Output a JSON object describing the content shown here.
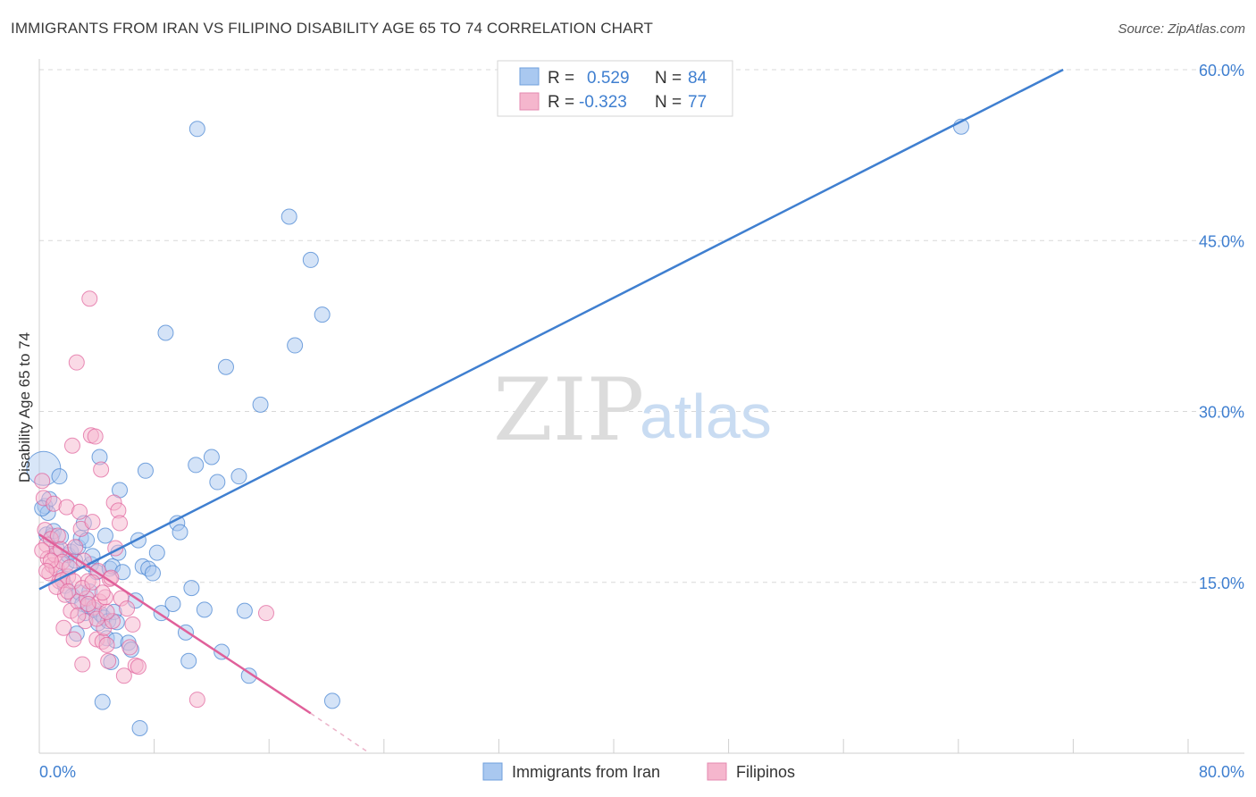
{
  "title": "IMMIGRANTS FROM IRAN VS FILIPINO DISABILITY AGE 65 TO 74 CORRELATION CHART",
  "source": "Source: ZipAtlas.com",
  "watermark": {
    "zip": "ZIP",
    "atlas": "atlas"
  },
  "colors": {
    "blue": "#3f7fd0",
    "blue_fill": "#a9c8f0",
    "pink": "#e0609a",
    "pink_fill": "#f5b6cd",
    "grid": "#d8d8d8"
  },
  "chart_data": {
    "type": "scatter",
    "title": "IMMIGRANTS FROM IRAN VS FILIPINO DISABILITY AGE 65 TO 74 CORRELATION CHART",
    "xlabel": "",
    "ylabel": "Disability Age 65 to 74",
    "xlim": [
      0,
      80
    ],
    "ylim": [
      0,
      60
    ],
    "x_tick_labels": [
      "0.0%",
      "80.0%"
    ],
    "y_ticks": [
      15,
      30,
      45,
      60
    ],
    "y_tick_labels": [
      "15.0%",
      "30.0%",
      "45.0%",
      "60.0%"
    ],
    "legend": [
      {
        "name": "Immigrants from Iran",
        "r_label": "R =",
        "r": "0.529",
        "n_label": "N =",
        "n": "84"
      },
      {
        "name": "Filipinos",
        "r_label": "R =",
        "r": "-0.323",
        "n_label": "N =",
        "n": "77"
      }
    ],
    "series": [
      {
        "name": "Immigrants from Iran",
        "trend": {
          "x": [
            0,
            71.3
          ],
          "y": [
            14.4,
            60.0
          ]
        },
        "points": [
          [
            0.3,
            25.0
          ],
          [
            0.4,
            21.7
          ],
          [
            0.5,
            19.2
          ],
          [
            0.6,
            21.1
          ],
          [
            0.7,
            22.3
          ],
          [
            0.9,
            19.1
          ],
          [
            1.0,
            19.5
          ],
          [
            1.2,
            18.0
          ],
          [
            1.4,
            24.3
          ],
          [
            1.5,
            19.0
          ],
          [
            1.6,
            15.4
          ],
          [
            1.8,
            14.7
          ],
          [
            1.9,
            16.6
          ],
          [
            2.0,
            17.4
          ],
          [
            2.2,
            17.7
          ],
          [
            2.3,
            13.8
          ],
          [
            2.5,
            16.9
          ],
          [
            2.6,
            10.5
          ],
          [
            2.7,
            18.1
          ],
          [
            2.8,
            14.1
          ],
          [
            2.9,
            18.9
          ],
          [
            3.0,
            13.1
          ],
          [
            3.1,
            20.2
          ],
          [
            3.2,
            12.3
          ],
          [
            3.3,
            18.7
          ],
          [
            3.4,
            12.9
          ],
          [
            3.5,
            14.2
          ],
          [
            3.6,
            16.6
          ],
          [
            3.7,
            17.3
          ],
          [
            3.8,
            12.6
          ],
          [
            4.0,
            15.9
          ],
          [
            4.1,
            11.4
          ],
          [
            4.2,
            26.0
          ],
          [
            4.3,
            12.2
          ],
          [
            4.4,
            4.5
          ],
          [
            4.5,
            11.9
          ],
          [
            4.6,
            19.1
          ],
          [
            4.7,
            10.1
          ],
          [
            4.8,
            11.6
          ],
          [
            4.9,
            16.2
          ],
          [
            5.0,
            8.0
          ],
          [
            5.1,
            16.4
          ],
          [
            5.2,
            12.4
          ],
          [
            5.3,
            9.9
          ],
          [
            5.4,
            11.5
          ],
          [
            5.5,
            17.6
          ],
          [
            5.6,
            23.1
          ],
          [
            5.8,
            15.9
          ],
          [
            6.2,
            9.7
          ],
          [
            6.4,
            9.1
          ],
          [
            6.7,
            13.4
          ],
          [
            6.9,
            18.7
          ],
          [
            7.0,
            2.2
          ],
          [
            7.2,
            16.4
          ],
          [
            7.4,
            24.8
          ],
          [
            7.6,
            16.2
          ],
          [
            7.9,
            15.8
          ],
          [
            8.2,
            17.6
          ],
          [
            8.5,
            12.3
          ],
          [
            8.8,
            36.9
          ],
          [
            9.3,
            13.1
          ],
          [
            9.6,
            20.2
          ],
          [
            9.8,
            19.4
          ],
          [
            10.2,
            10.6
          ],
          [
            10.4,
            8.1
          ],
          [
            10.6,
            14.5
          ],
          [
            10.9,
            25.3
          ],
          [
            11.0,
            54.8
          ],
          [
            11.5,
            12.6
          ],
          [
            12.0,
            26.0
          ],
          [
            12.4,
            23.8
          ],
          [
            12.7,
            8.9
          ],
          [
            13.0,
            33.9
          ],
          [
            13.9,
            24.3
          ],
          [
            14.3,
            12.5
          ],
          [
            14.6,
            6.8
          ],
          [
            15.4,
            30.6
          ],
          [
            17.4,
            47.1
          ],
          [
            17.8,
            35.8
          ],
          [
            18.9,
            43.3
          ],
          [
            19.7,
            38.5
          ],
          [
            20.4,
            4.6
          ],
          [
            64.2,
            55.0
          ],
          [
            0.2,
            21.5
          ]
        ]
      },
      {
        "name": "Filipinos",
        "trend": {
          "x": [
            0,
            18.9
          ],
          "y": [
            19.2,
            3.5
          ]
        },
        "trend_dashed": {
          "x": [
            18.9,
            23.0
          ],
          "y": [
            3.5,
            0.0
          ]
        },
        "points": [
          [
            0.2,
            23.9
          ],
          [
            0.3,
            22.4
          ],
          [
            0.4,
            19.6
          ],
          [
            0.5,
            18.3
          ],
          [
            0.6,
            17.1
          ],
          [
            0.7,
            15.8
          ],
          [
            0.8,
            18.8
          ],
          [
            0.9,
            16.5
          ],
          [
            1.0,
            21.9
          ],
          [
            1.1,
            17.4
          ],
          [
            1.2,
            16.2
          ],
          [
            1.3,
            19.1
          ],
          [
            1.4,
            15.1
          ],
          [
            1.5,
            17.9
          ],
          [
            1.6,
            16.8
          ],
          [
            1.7,
            11.0
          ],
          [
            1.8,
            13.9
          ],
          [
            1.9,
            21.6
          ],
          [
            2.0,
            15.5
          ],
          [
            2.1,
            16.3
          ],
          [
            2.2,
            12.5
          ],
          [
            2.3,
            27.0
          ],
          [
            2.4,
            10.0
          ],
          [
            2.5,
            18.1
          ],
          [
            2.6,
            34.3
          ],
          [
            2.7,
            13.3
          ],
          [
            2.8,
            21.2
          ],
          [
            2.9,
            19.7
          ],
          [
            3.0,
            7.8
          ],
          [
            3.1,
            16.9
          ],
          [
            3.2,
            11.6
          ],
          [
            3.3,
            13.6
          ],
          [
            3.4,
            15.1
          ],
          [
            3.5,
            39.9
          ],
          [
            3.6,
            27.9
          ],
          [
            3.7,
            20.3
          ],
          [
            3.8,
            12.8
          ],
          [
            3.9,
            27.8
          ],
          [
            4.0,
            10.0
          ],
          [
            4.1,
            16.0
          ],
          [
            4.2,
            13.3
          ],
          [
            4.3,
            24.9
          ],
          [
            4.4,
            9.8
          ],
          [
            4.5,
            11.0
          ],
          [
            4.6,
            13.7
          ],
          [
            4.7,
            9.5
          ],
          [
            4.8,
            8.1
          ],
          [
            4.9,
            15.3
          ],
          [
            5.0,
            15.4
          ],
          [
            5.1,
            11.6
          ],
          [
            5.2,
            22.0
          ],
          [
            5.3,
            18.0
          ],
          [
            5.5,
            21.3
          ],
          [
            5.6,
            20.2
          ],
          [
            5.7,
            13.6
          ],
          [
            5.9,
            6.8
          ],
          [
            6.1,
            12.7
          ],
          [
            6.3,
            9.3
          ],
          [
            6.5,
            11.3
          ],
          [
            6.7,
            7.7
          ],
          [
            6.9,
            7.6
          ],
          [
            11.0,
            4.7
          ],
          [
            15.8,
            12.3
          ],
          [
            0.2,
            17.8
          ],
          [
            0.8,
            16.9
          ],
          [
            1.6,
            15.2
          ],
          [
            2.4,
            15.1
          ],
          [
            3.0,
            14.5
          ],
          [
            3.7,
            15.0
          ],
          [
            4.4,
            14.1
          ],
          [
            0.5,
            16.0
          ],
          [
            1.2,
            14.6
          ],
          [
            2.0,
            14.2
          ],
          [
            2.7,
            12.1
          ],
          [
            3.4,
            13.1
          ],
          [
            4.0,
            11.8
          ],
          [
            4.7,
            12.4
          ]
        ]
      }
    ]
  }
}
